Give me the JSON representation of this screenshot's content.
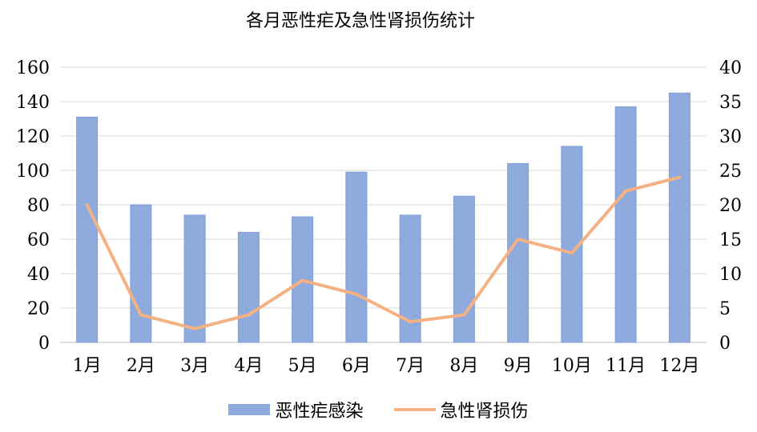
{
  "chart_data": {
    "type": "bar",
    "title": "各月恶性疟及急性肾损伤统计",
    "categories": [
      "1月",
      "2月",
      "3月",
      "4月",
      "5月",
      "6月",
      "7月",
      "8月",
      "9月",
      "10月",
      "11月",
      "12月"
    ],
    "series": [
      {
        "name": "恶性疟感染",
        "type": "bar",
        "axis": "left",
        "color": "#8faadc",
        "values": [
          131,
          80,
          74,
          64,
          73,
          99,
          74,
          85,
          104,
          114,
          137,
          145
        ]
      },
      {
        "name": "急性肾损伤",
        "type": "line",
        "axis": "right",
        "color": "#f4b183",
        "values": [
          20,
          4,
          2,
          4,
          9,
          7,
          3,
          4,
          15,
          13,
          22,
          24
        ]
      }
    ],
    "y_left": {
      "min": 0,
      "max": 160,
      "step": 20,
      "ticks": [
        "0",
        "20",
        "40",
        "60",
        "80",
        "100",
        "120",
        "140",
        "160"
      ]
    },
    "y_right": {
      "min": 0,
      "max": 40,
      "step": 5,
      "ticks": [
        "0",
        "5",
        "10",
        "15",
        "20",
        "25",
        "30",
        "35",
        "40"
      ]
    },
    "grid": true,
    "legend_position": "bottom"
  }
}
